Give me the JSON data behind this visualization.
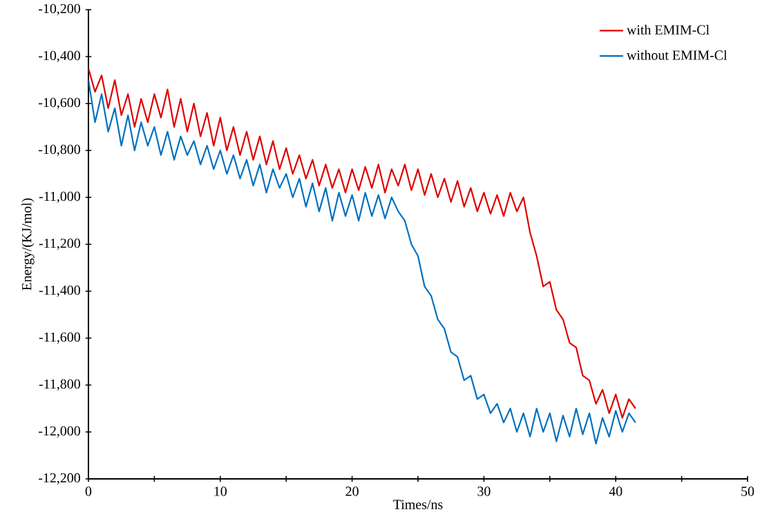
{
  "chart_data": {
    "type": "line",
    "xlabel": "Times/ns",
    "ylabel": "Energy/(KJ/mol)",
    "xlim": [
      0,
      50
    ],
    "ylim": [
      -12200,
      -10200
    ],
    "xticks": [
      0,
      {
        "value": 5,
        "label": null
      },
      10,
      {
        "value": 15,
        "label": null
      },
      20,
      {
        "value": 25,
        "label": null
      },
      30,
      {
        "value": 35,
        "label": null
      },
      40,
      {
        "value": 45,
        "label": null
      },
      50
    ],
    "yticks": [
      {
        "value": -12200,
        "label": "-12,200"
      },
      {
        "value": -12000,
        "label": "-12,000"
      },
      {
        "value": -11800,
        "label": "-11,800"
      },
      {
        "value": -11600,
        "label": "-11,600"
      },
      {
        "value": -11400,
        "label": "-11,400"
      },
      {
        "value": -11200,
        "label": "-11,200"
      },
      {
        "value": -11000,
        "label": "-11,000"
      },
      {
        "value": -10800,
        "label": "-10,800"
      },
      {
        "value": -10600,
        "label": "-10,600"
      },
      {
        "value": -10400,
        "label": "-10,400"
      },
      {
        "value": -10200,
        "label": "-10,200"
      }
    ],
    "grid": false,
    "legend": "top right",
    "marker": "none",
    "line_style": "solid",
    "x": [
      0,
      0.5,
      1,
      1.5,
      2,
      2.5,
      3,
      3.5,
      4,
      4.5,
      5,
      5.5,
      6,
      6.5,
      7,
      7.5,
      8,
      8.5,
      9,
      9.5,
      10,
      10.5,
      11,
      11.5,
      12,
      12.5,
      13,
      13.5,
      14,
      14.5,
      15,
      15.5,
      16,
      16.5,
      17,
      17.5,
      18,
      18.5,
      19,
      19.5,
      20,
      20.5,
      21,
      21.5,
      22,
      22.5,
      23,
      23.5,
      24,
      24.5,
      25,
      25.5,
      26,
      26.5,
      27,
      27.5,
      28,
      28.5,
      29,
      29.5,
      30,
      30.5,
      31,
      31.5,
      32,
      32.5,
      33,
      33.5,
      34,
      34.5,
      35,
      35.5,
      36,
      36.5,
      37,
      37.5,
      38,
      38.5,
      39,
      39.5,
      40,
      40.5,
      41,
      41.5
    ],
    "series": [
      {
        "name": "with EMIM-Cl",
        "color": "#e00000",
        "values": [
          -10450,
          -10550,
          -10480,
          -10620,
          -10500,
          -10650,
          -10560,
          -10700,
          -10580,
          -10680,
          -10560,
          -10660,
          -10540,
          -10700,
          -10580,
          -10720,
          -10600,
          -10740,
          -10640,
          -10780,
          -10660,
          -10800,
          -10700,
          -10820,
          -10720,
          -10840,
          -10740,
          -10860,
          -10760,
          -10880,
          -10790,
          -10900,
          -10820,
          -10920,
          -10840,
          -10950,
          -10860,
          -10960,
          -10880,
          -10980,
          -10880,
          -10970,
          -10870,
          -10960,
          -10860,
          -10980,
          -10880,
          -10950,
          -10860,
          -10970,
          -10880,
          -10990,
          -10900,
          -11000,
          -10920,
          -11020,
          -10930,
          -11040,
          -10960,
          -11060,
          -10980,
          -11070,
          -10990,
          -11080,
          -10980,
          -11060,
          -11000,
          -11150,
          -11250,
          -11380,
          -11360,
          -11480,
          -11520,
          -11620,
          -11640,
          -11760,
          -11780,
          -11880,
          -11820,
          -11920,
          -11840,
          -11940,
          -11860,
          -11900
        ]
      },
      {
        "name": "without EMIM-Cl",
        "color": "#0070c0",
        "values": [
          -10500,
          -10680,
          -10560,
          -10720,
          -10620,
          -10780,
          -10650,
          -10800,
          -10680,
          -10780,
          -10700,
          -10820,
          -10720,
          -10840,
          -10740,
          -10820,
          -10760,
          -10860,
          -10780,
          -10880,
          -10800,
          -10900,
          -10820,
          -10920,
          -10840,
          -10950,
          -10860,
          -10980,
          -10880,
          -10960,
          -10900,
          -11000,
          -10920,
          -11040,
          -10940,
          -11060,
          -10960,
          -11100,
          -10980,
          -11080,
          -10990,
          -11100,
          -10980,
          -11080,
          -10990,
          -11090,
          -11000,
          -11060,
          -11100,
          -11200,
          -11250,
          -11380,
          -11420,
          -11520,
          -11560,
          -11660,
          -11680,
          -11780,
          -11760,
          -11860,
          -11840,
          -11920,
          -11880,
          -11960,
          -11900,
          -12000,
          -11920,
          -12020,
          -11900,
          -12000,
          -11920,
          -12040,
          -11930,
          -12020,
          -11900,
          -12010,
          -11920,
          -12050,
          -11940,
          -12020,
          -11910,
          -12000,
          -11920,
          -11960
        ]
      }
    ]
  }
}
